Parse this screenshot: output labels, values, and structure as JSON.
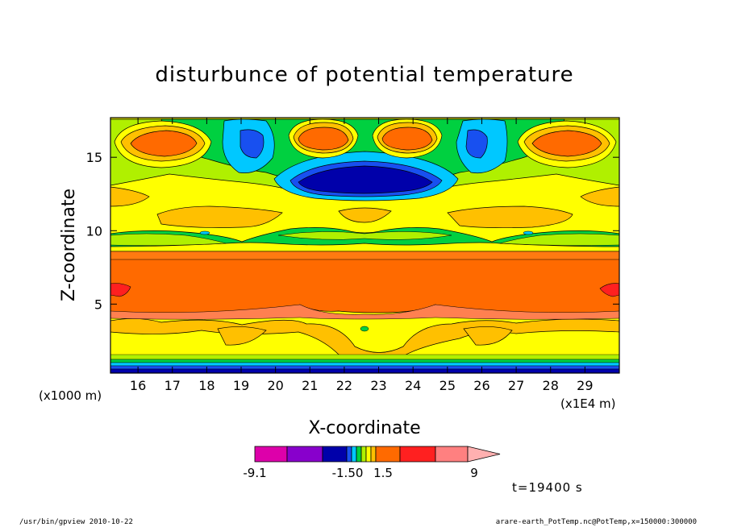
{
  "chart_data": {
    "type": "heatmap",
    "subtype": "filled-contour",
    "title": "disturbunce of potential temperature",
    "xlabel": "X-coordinate",
    "ylabel": "Z-coordinate",
    "x_unit_left": "(x1000 m)",
    "x_unit_right": "(x1E4 m)",
    "xlim": [
      15.2,
      30.0
    ],
    "ylim": [
      0.3,
      17.7
    ],
    "x_ticks": [
      "16",
      "17",
      "18",
      "19",
      "20",
      "21",
      "22",
      "23",
      "24",
      "25",
      "26",
      "27",
      "28",
      "29"
    ],
    "y_ticks": [
      "5",
      "10",
      "15"
    ],
    "grid": false,
    "colorbar": {
      "labels": [
        "-9.1",
        "-1.50",
        "1.5",
        "9"
      ],
      "colors": [
        "#dd00aa",
        "#8800cc",
        "#0000aa",
        "#1850f0",
        "#00c8ff",
        "#00d040",
        "#b0f000",
        "#ffff00",
        "#ffc000",
        "#ff6a00",
        "#ff2020",
        "#ff8080",
        "#ffb0b0"
      ]
    },
    "time_label": "t=19400 s"
  },
  "footer": {
    "left": "/usr/bin/gpview  2010-10-22",
    "right": "arare-earth_PotTemp.nc@PotTemp,x=150000:300000"
  }
}
